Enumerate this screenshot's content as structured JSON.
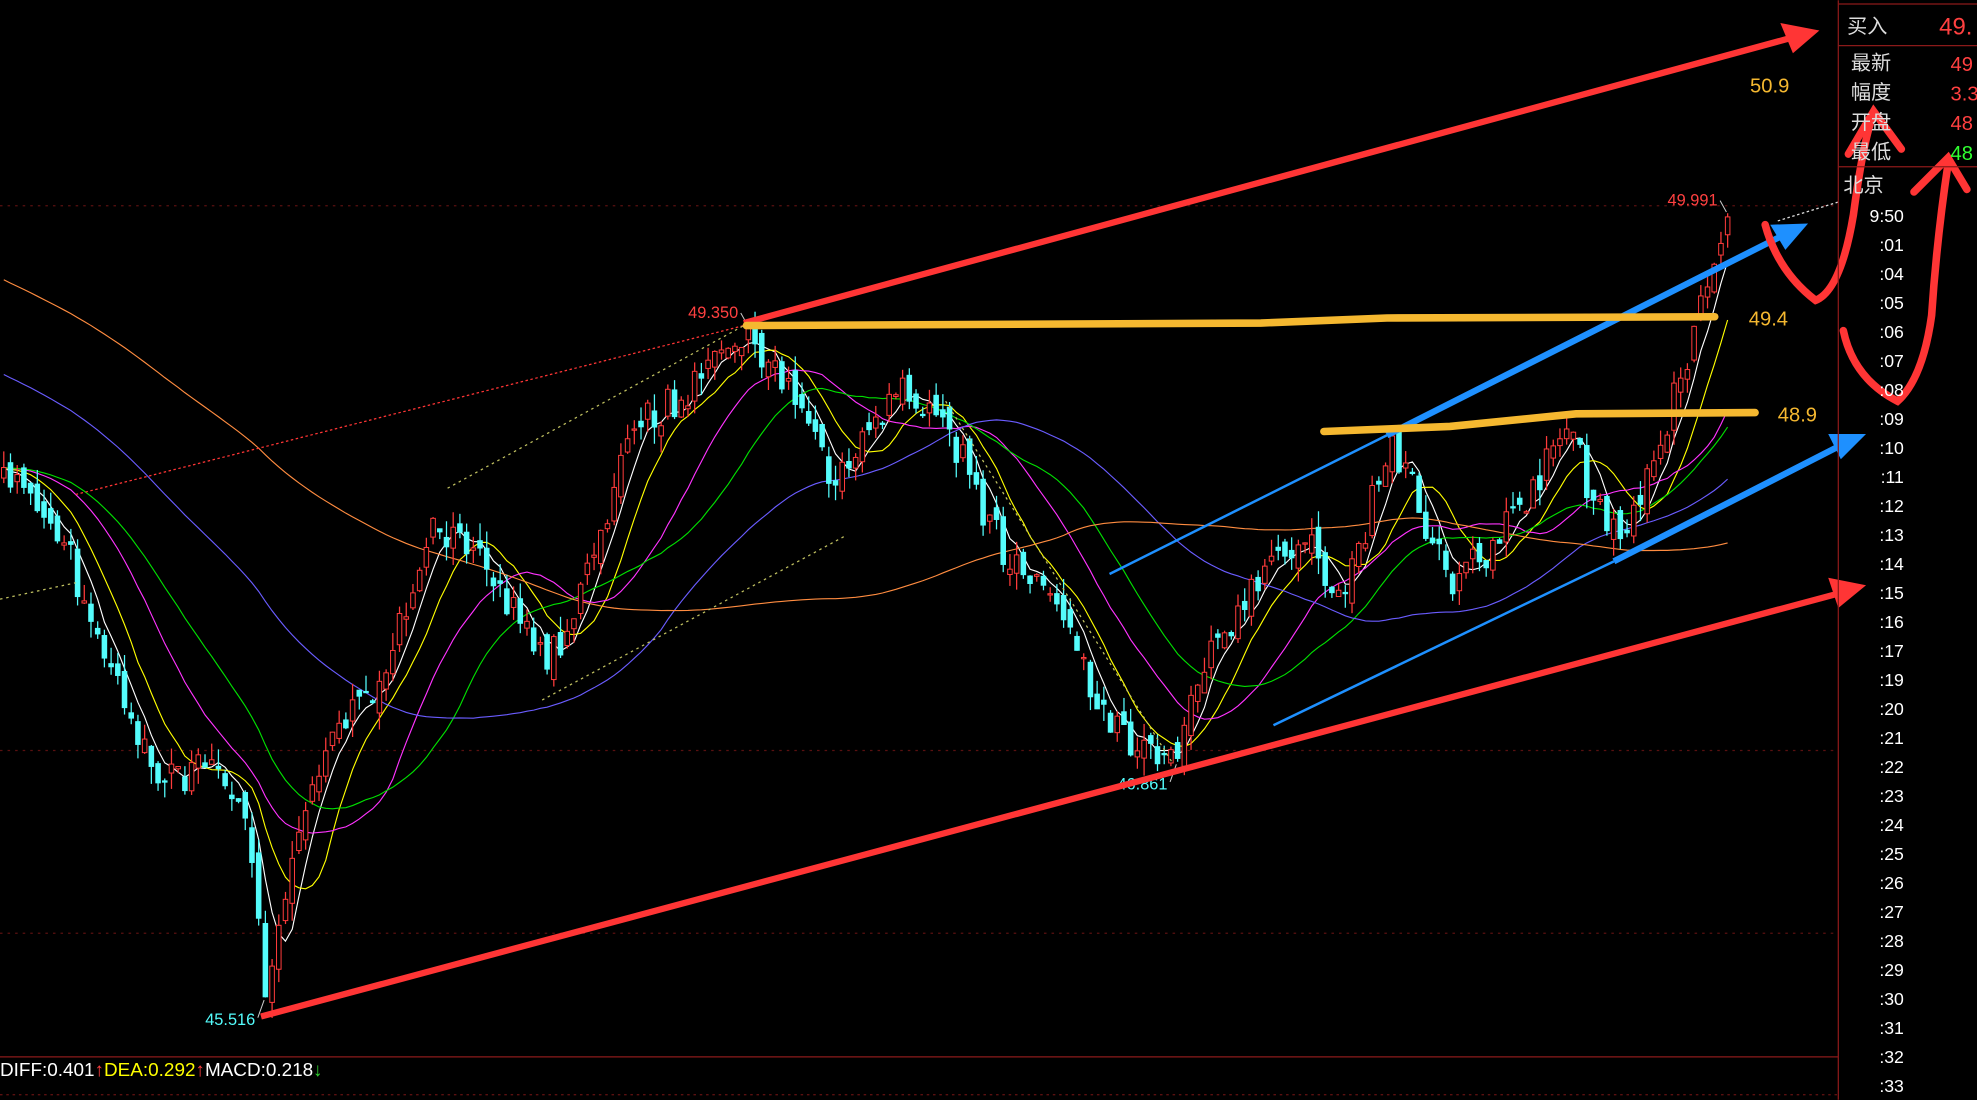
{
  "chart_data": {
    "type": "candlestick",
    "x_unit": "bar index",
    "close_waypoints": [
      [
        0,
        48.54
      ],
      [
        9,
        48.11
      ],
      [
        20,
        46.96
      ],
      [
        24,
        46.75
      ],
      [
        30,
        46.83
      ],
      [
        36,
        46.54
      ],
      [
        39,
        45.52
      ],
      [
        43,
        46.31
      ],
      [
        49,
        47.03
      ],
      [
        56,
        47.32
      ],
      [
        64,
        48.25
      ],
      [
        72,
        47.96
      ],
      [
        81,
        47.39
      ],
      [
        88,
        48.04
      ],
      [
        94,
        48.76
      ],
      [
        104,
        49.05
      ],
      [
        111,
        49.35
      ],
      [
        118,
        48.9
      ],
      [
        124,
        48.44
      ],
      [
        134,
        49.05
      ],
      [
        141,
        48.76
      ],
      [
        150,
        47.96
      ],
      [
        156,
        47.82
      ],
      [
        165,
        47.03
      ],
      [
        175,
        46.88
      ],
      [
        177,
        47.24
      ],
      [
        184,
        47.75
      ],
      [
        194,
        48.11
      ],
      [
        200,
        47.82
      ],
      [
        207,
        48.72
      ],
      [
        213,
        48.11
      ],
      [
        216,
        47.82
      ],
      [
        226,
        48.33
      ],
      [
        233,
        48.76
      ],
      [
        239,
        48.18
      ],
      [
        244,
        48.33
      ],
      [
        250,
        49.05
      ],
      [
        255,
        49.7
      ],
      [
        257,
        49.97
      ]
    ],
    "price_labels": [
      {
        "text": "49.350",
        "price": 49.35,
        "bar": 111,
        "color": "#ff4040"
      },
      {
        "text": "49.991",
        "price": 49.991,
        "bar": 257,
        "color": "#ff4040"
      },
      {
        "text": "45.516",
        "price": 45.516,
        "bar": 39,
        "color": "#54fcfc"
      },
      {
        "text": "46.861",
        "price": 46.861,
        "bar": 175,
        "color": "#54fcfc"
      }
    ],
    "annotated_levels": [
      {
        "text": "50.9",
        "color": "#f5b830"
      },
      {
        "text": "49.4",
        "price": 49.4,
        "color": "#f5b830"
      },
      {
        "text": "48.9",
        "price": 48.9,
        "color": "#f5b830"
      }
    ],
    "colors": {
      "up": "#ff3b3b",
      "down": "#54fcfc",
      "ma5": "#ffffff",
      "ma10": "#ffff00",
      "ma20": "#ff33ff",
      "ma30": "#00e000",
      "ma60": "#6a5cff",
      "ma120": "#ff8c40",
      "trend_red": "#ff3535",
      "trend_blue": "#1e90ff"
    }
  },
  "indicator": {
    "diff": "DIFF:0.401",
    "diff_arrow": "↑",
    "dea": "DEA:0.292",
    "dea_arrow": "↑",
    "macd": "MACD:0.218",
    "macd_arrow": "↓"
  },
  "quote_panel": {
    "buy_label": "买入",
    "buy_value": "49.",
    "rows": [
      {
        "label": "最新",
        "value": "49",
        "color": "#ff4040"
      },
      {
        "label": "幅度",
        "value": "3.3",
        "color": "#ff4040"
      },
      {
        "label": "开盘",
        "value": "48",
        "color": "#ff4040"
      },
      {
        "label": "最低",
        "value": "48",
        "color": "#30ff30"
      }
    ],
    "city": "北京",
    "times": [
      "9:50",
      ":01",
      ":04",
      ":05",
      ":06",
      ":07",
      ":08",
      ":09",
      ":10",
      ":11",
      ":12",
      ":13",
      ":14",
      ":15",
      ":16",
      ":17",
      ":19",
      ":20",
      ":21",
      ":22",
      ":23",
      ":24",
      ":25",
      ":26",
      ":27",
      ":28",
      ":29",
      ":30",
      ":31",
      ":32",
      ":33"
    ]
  }
}
